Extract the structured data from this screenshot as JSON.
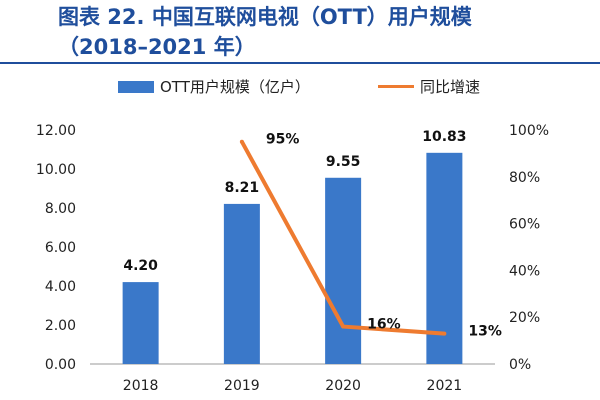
{
  "header": {
    "title_line1": "图表 22. 中国互联网电视（OTT）用户规模",
    "title_line2": "（2018–2021 年）"
  },
  "colors": {
    "title": "#1f4e9c",
    "bar": "#3a78c9",
    "line": "#ee7b30",
    "axis": "#999999"
  },
  "chart_data": {
    "type": "bar",
    "categories": [
      "2018",
      "2019",
      "2020",
      "2021"
    ],
    "series": [
      {
        "name": "OTT用户规模（亿户）",
        "type": "bar",
        "axis": "left",
        "values": [
          4.2,
          8.21,
          9.55,
          10.83
        ],
        "labels": [
          "4.20",
          "8.21",
          "9.55",
          "10.83"
        ]
      },
      {
        "name": "同比增速",
        "type": "line",
        "axis": "right",
        "values": [
          null,
          95,
          16,
          13
        ],
        "labels": [
          "",
          "95%",
          "16%",
          "13%"
        ]
      }
    ],
    "y_left": {
      "range": [
        0,
        12
      ],
      "ticks": [
        "0.00",
        "2.00",
        "4.00",
        "6.00",
        "8.00",
        "10.00",
        "12.00"
      ]
    },
    "y_right": {
      "range": [
        0,
        100
      ],
      "ticks": [
        "0%",
        "20%",
        "40%",
        "60%",
        "80%",
        "100%"
      ]
    },
    "legend_position": "top",
    "grid": false
  }
}
